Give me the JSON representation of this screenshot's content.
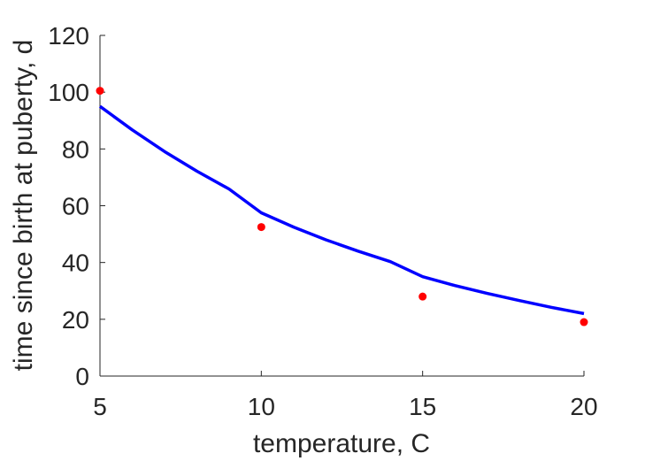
{
  "chart_data": {
    "type": "scatter",
    "xlabel": "temperature, C",
    "ylabel": "time since birth at puberty, d",
    "xlim": [
      5,
      20
    ],
    "ylim": [
      0,
      120
    ],
    "xticks": [
      "5",
      "10",
      "15",
      "20"
    ],
    "yticks": [
      "0",
      "20",
      "40",
      "60",
      "80",
      "100",
      "120"
    ],
    "grid": false,
    "series": [
      {
        "kind": "points",
        "color": "#ff0000",
        "x": [
          5,
          10,
          15,
          20
        ],
        "y": [
          100.5,
          52.5,
          28,
          19
        ]
      },
      {
        "kind": "line",
        "color": "#0000ff",
        "x": [
          5,
          6,
          7,
          8,
          9,
          10,
          11,
          12,
          13,
          14,
          15,
          16,
          17,
          18,
          19,
          20
        ],
        "y": [
          95,
          86.7,
          79.1,
          72.2,
          65.9,
          57.5,
          52.5,
          48,
          44,
          40.3,
          35,
          31.9,
          29.1,
          26.6,
          24.2,
          22
        ]
      }
    ]
  }
}
